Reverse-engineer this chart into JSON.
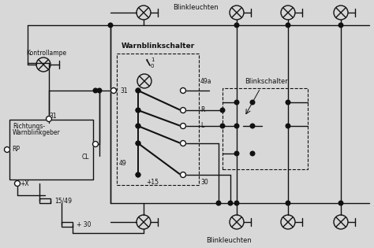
{
  "bg_color": "#d8d8d8",
  "line_color": "#111111",
  "labels": {
    "kontrollampe": "Kontrollampe",
    "richtungs1": "Richtungs-",
    "richtungs2": "Warnblinkgeber",
    "warnblinkschalter": "Warnblinkschalter",
    "blinkschalter": "Blinkschalter",
    "blinkleuchten_top": "Blinkleuchten",
    "blinkleuchten_bot": "Blinkleuchten",
    "rp": "RP",
    "cl": "CL",
    "pos_x": "+X",
    "pos_15": "+15",
    "pos_30": "+ 30",
    "pos_1549": "15/49",
    "n31": "31",
    "n31b": "31",
    "n49": "49",
    "n49a": "49a",
    "nR": "R",
    "nL": "L",
    "n30": "30",
    "n1": "1",
    "n0": "0"
  },
  "fs": 5.5,
  "fsb": 6.5,
  "lw": 1.0
}
